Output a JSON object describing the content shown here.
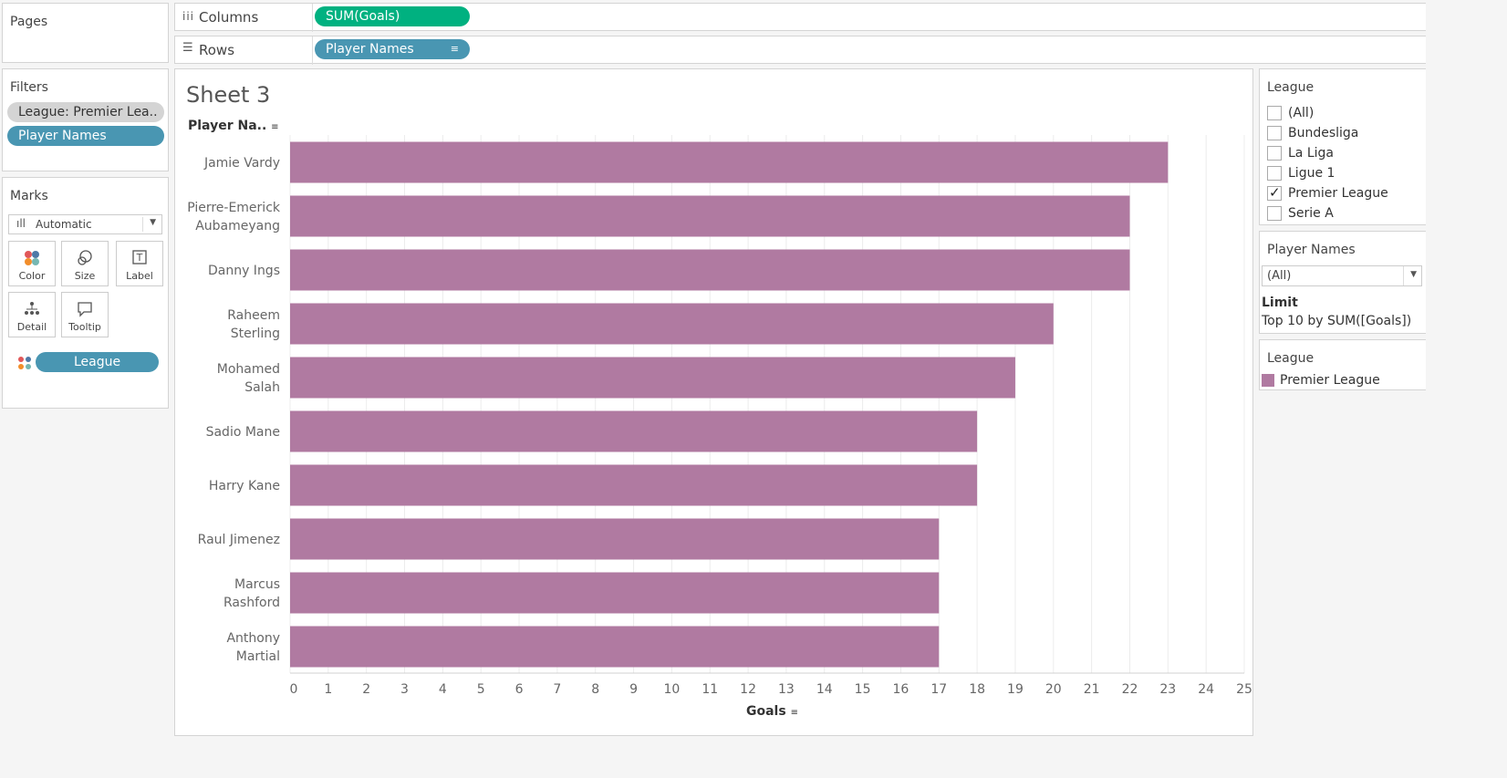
{
  "pages_panel": {
    "title": "Pages"
  },
  "columns_shelf": {
    "label": "Columns",
    "pill": "SUM(Goals)"
  },
  "rows_shelf": {
    "label": "Rows",
    "pill": "Player Names"
  },
  "filters_panel": {
    "title": "Filters",
    "pills": [
      "League: Premier Lea..",
      "Player Names"
    ]
  },
  "marks_panel": {
    "title": "Marks",
    "mark_type": "Automatic",
    "buttons": [
      "Color",
      "Size",
      "Label",
      "Detail",
      "Tooltip"
    ],
    "field_pill": "League"
  },
  "sheet": {
    "title": "Sheet 3",
    "row_header": "Player Na..",
    "x_axis_title": "Goals"
  },
  "league_filter": {
    "title": "League",
    "options": [
      {
        "label": "(All)",
        "checked": false
      },
      {
        "label": "Bundesliga",
        "checked": false
      },
      {
        "label": "La Liga",
        "checked": false
      },
      {
        "label": "Ligue 1",
        "checked": false
      },
      {
        "label": "Premier League",
        "checked": true
      },
      {
        "label": "Serie A",
        "checked": false
      }
    ]
  },
  "player_filter": {
    "title": "Player Names",
    "selected": "(All)",
    "limit_label": "Limit",
    "limit_text": "Top 10 by SUM([Goals])"
  },
  "legend": {
    "title": "League",
    "items": [
      {
        "label": "Premier League",
        "color": "#b07aa1"
      }
    ]
  },
  "colors": {
    "bar": "#b07aa1",
    "green_pill": "#00b180",
    "blue_pill": "#4996b2"
  },
  "chart_data": {
    "type": "bar",
    "orientation": "horizontal",
    "categories": [
      [
        "Jamie Vardy"
      ],
      [
        "Pierre-Emerick",
        "Aubameyang"
      ],
      [
        "Danny Ings"
      ],
      [
        "Raheem",
        "Sterling"
      ],
      [
        "Mohamed",
        "Salah"
      ],
      [
        "Sadio Mane"
      ],
      [
        "Harry Kane"
      ],
      [
        "Raul Jimenez"
      ],
      [
        "Marcus",
        "Rashford"
      ],
      [
        "Anthony",
        "Martial"
      ]
    ],
    "values": [
      23,
      22,
      22,
      20,
      19,
      18,
      18,
      17,
      17,
      17
    ],
    "xlim": [
      0,
      25
    ],
    "xticks": [
      0,
      1,
      2,
      3,
      4,
      5,
      6,
      7,
      8,
      9,
      10,
      11,
      12,
      13,
      14,
      15,
      16,
      17,
      18,
      19,
      20,
      21,
      22,
      23,
      24,
      25
    ],
    "xlabel": "Goals",
    "grid": true
  }
}
